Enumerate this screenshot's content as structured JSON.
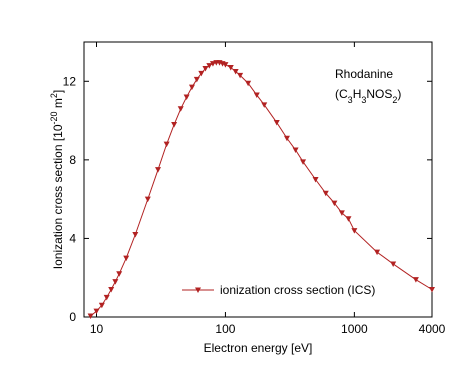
{
  "chart_data": {
    "type": "line",
    "xlabel": "Electron energy [eV]",
    "ylabel": [
      {
        "text": "Ionization cross section [10"
      },
      {
        "text": "-20",
        "script": "sup"
      },
      {
        "text": " m"
      },
      {
        "text": "2",
        "script": "sup"
      },
      {
        "text": "]"
      }
    ],
    "annotation": {
      "name": "Rhodanine",
      "formula": [
        {
          "text": "(C"
        },
        {
          "text": "3",
          "script": "sub"
        },
        {
          "text": "H"
        },
        {
          "text": "3",
          "script": "sub"
        },
        {
          "text": "NOS"
        },
        {
          "text": "2",
          "script": "sub"
        },
        {
          "text": ")"
        }
      ]
    },
    "xscale": "log",
    "xlim": [
      8,
      4000
    ],
    "xticks": [
      10,
      100,
      1000,
      4000
    ],
    "ylim": [
      0,
      14
    ],
    "yticks": [
      0,
      4,
      8,
      12
    ],
    "legend": "bottom-right",
    "series": [
      {
        "name": "ionization cross section (ICS)",
        "color": "#b22222",
        "x": [
          9,
          10,
          11,
          12,
          13,
          14,
          15,
          17,
          20,
          25,
          30,
          35,
          40,
          45,
          50,
          55,
          60,
          65,
          70,
          75,
          80,
          85,
          90,
          95,
          100,
          110,
          120,
          130,
          150,
          175,
          200,
          250,
          300,
          350,
          400,
          500,
          600,
          700,
          800,
          900,
          1000,
          1500,
          2000,
          3000,
          4000
        ],
        "values": [
          0.05,
          0.3,
          0.6,
          1.0,
          1.4,
          1.8,
          2.2,
          3.0,
          4.2,
          6.0,
          7.5,
          8.8,
          9.8,
          10.6,
          11.2,
          11.7,
          12.1,
          12.4,
          12.65,
          12.8,
          12.9,
          12.95,
          12.95,
          12.9,
          12.85,
          12.7,
          12.5,
          12.3,
          11.9,
          11.3,
          10.8,
          9.9,
          9.1,
          8.5,
          7.9,
          7.0,
          6.3,
          5.8,
          5.3,
          5.0,
          4.4,
          3.3,
          2.7,
          1.9,
          1.4
        ]
      }
    ]
  }
}
